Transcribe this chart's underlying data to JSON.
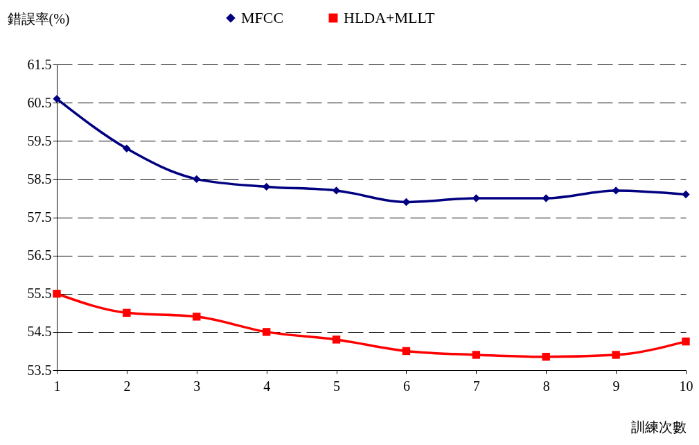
{
  "chart_data": {
    "type": "line",
    "xlabel": "訓練次數",
    "ylabel": "錯誤率(%)",
    "x": [
      1,
      2,
      3,
      4,
      5,
      6,
      7,
      8,
      9,
      10
    ],
    "xlim": [
      1,
      10
    ],
    "xticks": [
      1,
      2,
      3,
      4,
      5,
      6,
      7,
      8,
      9,
      10
    ],
    "ylim": [
      53.5,
      61.5
    ],
    "yticks": [
      53.5,
      54.5,
      55.5,
      56.5,
      57.5,
      58.5,
      59.5,
      60.5,
      61.5
    ],
    "grid": "y",
    "legend": "top",
    "series": [
      {
        "name": "MFCC",
        "color": "#000080",
        "marker": "diamond",
        "values": [
          60.6,
          59.3,
          58.5,
          58.3,
          58.2,
          57.9,
          58.0,
          58.0,
          58.2,
          58.1
        ]
      },
      {
        "name": "HLDA+MLLT",
        "color": "#ff0000",
        "marker": "square",
        "values": [
          55.5,
          55.0,
          54.9,
          54.5,
          54.3,
          54.0,
          53.9,
          53.85,
          53.9,
          54.25
        ]
      }
    ]
  }
}
